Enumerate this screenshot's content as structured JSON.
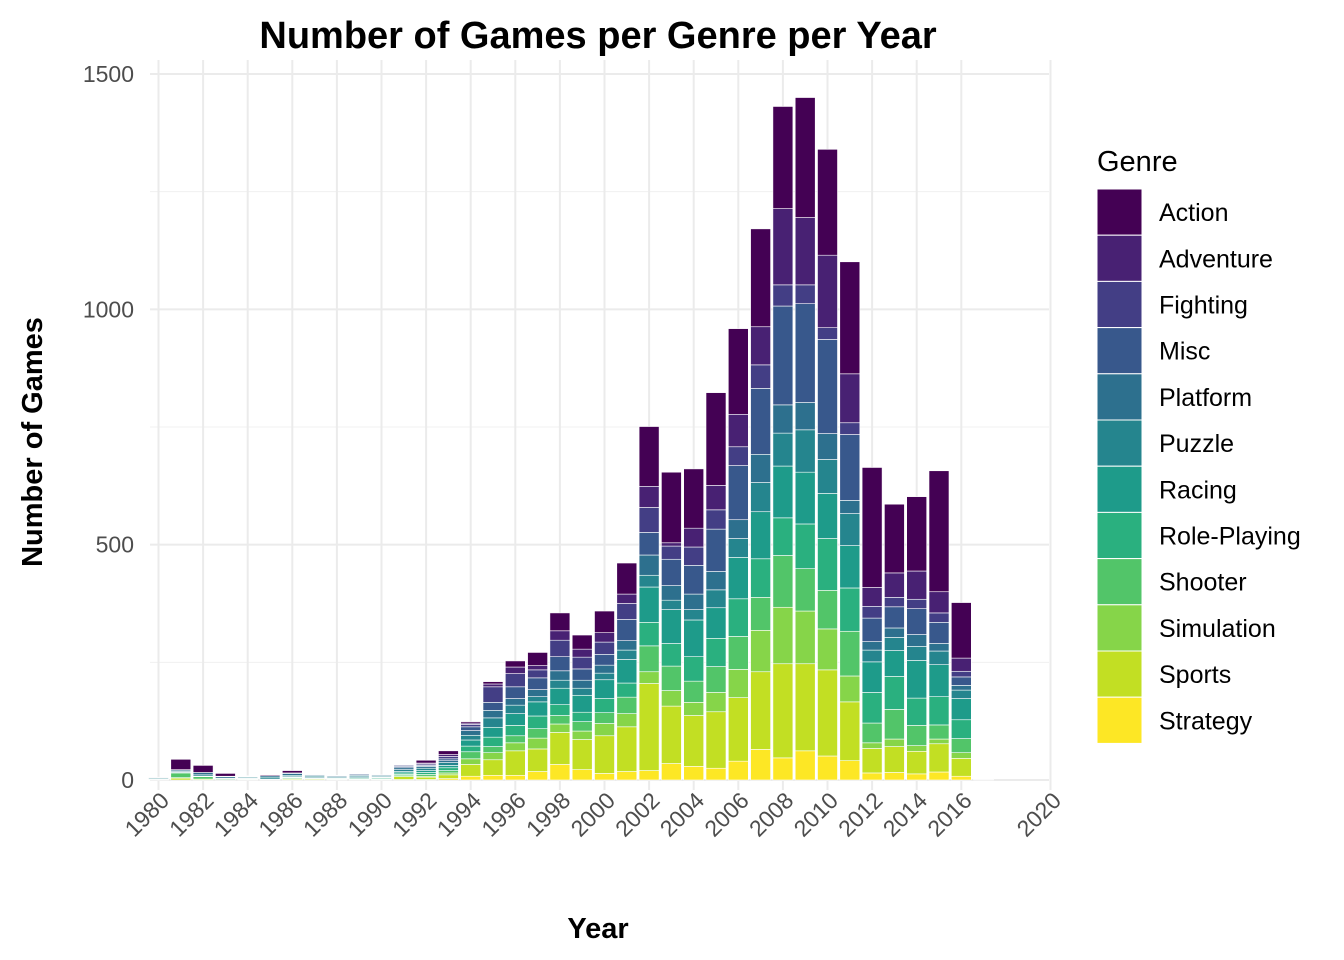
{
  "chart_data": {
    "type": "bar",
    "stacked": true,
    "title": "Number of Games per Genre per Year",
    "xlabel": "Year",
    "ylabel": "Number of Games",
    "ylim": [
      0,
      1500
    ],
    "y_ticks": [
      0,
      500,
      1000,
      1500
    ],
    "x_tick_labels": [
      "1980",
      "1982",
      "1984",
      "1986",
      "1988",
      "1990",
      "1992",
      "1994",
      "1996",
      "1998",
      "2000",
      "2002",
      "2004",
      "2006",
      "2008",
      "2010",
      "2012",
      "2014",
      "2016",
      "2020"
    ],
    "categories": [
      "1980",
      "1981",
      "1982",
      "1983",
      "1984",
      "1985",
      "1986",
      "1987",
      "1988",
      "1989",
      "1990",
      "1991",
      "1992",
      "1993",
      "1994",
      "1995",
      "1996",
      "1997",
      "1998",
      "1999",
      "2000",
      "2001",
      "2002",
      "2003",
      "2004",
      "2005",
      "2006",
      "2007",
      "2008",
      "2009",
      "2010",
      "2011",
      "2012",
      "2013",
      "2014",
      "2015",
      "2016",
      "2017",
      "2020"
    ],
    "legend_title": "Genre",
    "legend_position": "right",
    "grid": true,
    "series": [
      {
        "name": "Strategy",
        "color": "#FDE725",
        "values": [
          0,
          0,
          0,
          0,
          0,
          0,
          0,
          0,
          0,
          0,
          0,
          1,
          1,
          3,
          8,
          10,
          10,
          18,
          33,
          22,
          14,
          18,
          20,
          35,
          29,
          25,
          40,
          65,
          47,
          62,
          51,
          41,
          15,
          16,
          13,
          17,
          8,
          0,
          0
        ]
      },
      {
        "name": "Sports",
        "color": "#C2DF23",
        "values": [
          1,
          4,
          2,
          1,
          1,
          1,
          2,
          2,
          1,
          1,
          1,
          6,
          5,
          8,
          25,
          33,
          52,
          48,
          68,
          64,
          80,
          95,
          185,
          122,
          108,
          120,
          135,
          165,
          200,
          185,
          183,
          125,
          52,
          55,
          48,
          60,
          38,
          1,
          0
        ]
      },
      {
        "name": "Simulation",
        "color": "#86D549",
        "values": [
          0,
          1,
          0,
          0,
          1,
          0,
          1,
          0,
          1,
          0,
          1,
          2,
          2,
          4,
          12,
          15,
          17,
          23,
          18,
          18,
          26,
          28,
          25,
          33,
          28,
          41,
          60,
          88,
          120,
          112,
          87,
          55,
          12,
          16,
          12,
          10,
          12,
          0,
          0
        ]
      },
      {
        "name": "Shooter",
        "color": "#52C569",
        "values": [
          1,
          10,
          5,
          2,
          1,
          1,
          2,
          1,
          1,
          1,
          1,
          3,
          4,
          5,
          15,
          13,
          15,
          20,
          18,
          20,
          23,
          35,
          55,
          52,
          45,
          55,
          70,
          70,
          110,
          90,
          82,
          95,
          42,
          63,
          43,
          30,
          30,
          1,
          0
        ]
      },
      {
        "name": "Role-Playing",
        "color": "#2AB07F",
        "values": [
          0,
          0,
          0,
          0,
          0,
          0,
          1,
          1,
          1,
          2,
          2,
          3,
          4,
          6,
          12,
          20,
          22,
          27,
          23,
          20,
          30,
          30,
          50,
          48,
          52,
          60,
          80,
          82,
          80,
          95,
          110,
          92,
          65,
          70,
          58,
          60,
          40,
          0,
          0
        ]
      },
      {
        "name": "Racing",
        "color": "#1E9B8A",
        "values": [
          0,
          1,
          1,
          0,
          1,
          0,
          1,
          1,
          1,
          1,
          1,
          3,
          4,
          5,
          13,
          21,
          25,
          30,
          35,
          36,
          40,
          50,
          75,
          72,
          78,
          65,
          88,
          100,
          110,
          110,
          96,
          90,
          65,
          55,
          80,
          68,
          45,
          0,
          0
        ]
      },
      {
        "name": "Puzzle",
        "color": "#25858E",
        "values": [
          2,
          2,
          3,
          1,
          2,
          4,
          3,
          3,
          2,
          3,
          2,
          4,
          5,
          6,
          10,
          20,
          18,
          11,
          17,
          15,
          14,
          20,
          25,
          20,
          22,
          38,
          40,
          62,
          70,
          90,
          72,
          68,
          25,
          28,
          30,
          29,
          18,
          0,
          0
        ]
      },
      {
        "name": "Platform",
        "color": "#2D708E",
        "values": [
          0,
          3,
          5,
          3,
          1,
          3,
          4,
          2,
          2,
          2,
          2,
          4,
          4,
          4,
          10,
          16,
          14,
          15,
          20,
          17,
          17,
          20,
          43,
          31,
          33,
          39,
          40,
          60,
          60,
          58,
          55,
          28,
          18,
          20,
          25,
          16,
          10,
          0,
          0
        ]
      },
      {
        "name": "Misc",
        "color": "#38588C",
        "values": [
          1,
          1,
          0,
          1,
          1,
          0,
          1,
          1,
          1,
          2,
          1,
          3,
          2,
          4,
          8,
          17,
          25,
          25,
          30,
          24,
          23,
          45,
          48,
          56,
          61,
          90,
          115,
          140,
          210,
          210,
          200,
          140,
          50,
          45,
          55,
          45,
          18,
          0,
          0
        ]
      },
      {
        "name": "Fighting",
        "color": "#433E85",
        "values": [
          0,
          0,
          0,
          0,
          0,
          0,
          0,
          0,
          0,
          0,
          0,
          2,
          3,
          5,
          5,
          33,
          28,
          17,
          35,
          25,
          26,
          34,
          53,
          28,
          39,
          41,
          40,
          50,
          45,
          40,
          25,
          25,
          25,
          20,
          20,
          20,
          12,
          0,
          0
        ]
      },
      {
        "name": "Adventure",
        "color": "#482173",
        "values": [
          0,
          0,
          0,
          0,
          0,
          0,
          0,
          0,
          0,
          0,
          0,
          0,
          2,
          4,
          3,
          6,
          14,
          9,
          20,
          17,
          20,
          20,
          45,
          7,
          40,
          52,
          69,
          81,
          162,
          143,
          154,
          104,
          40,
          52,
          60,
          45,
          28,
          0,
          0
        ]
      },
      {
        "name": "Action",
        "color": "#440154",
        "values": [
          1,
          22,
          15,
          6,
          1,
          2,
          5,
          0,
          0,
          0,
          0,
          0,
          6,
          8,
          3,
          5,
          13,
          28,
          38,
          30,
          46,
          66,
          127,
          150,
          126,
          197,
          182,
          208,
          217,
          255,
          225,
          238,
          255,
          146,
          158,
          257,
          118,
          1,
          0
        ]
      }
    ]
  }
}
